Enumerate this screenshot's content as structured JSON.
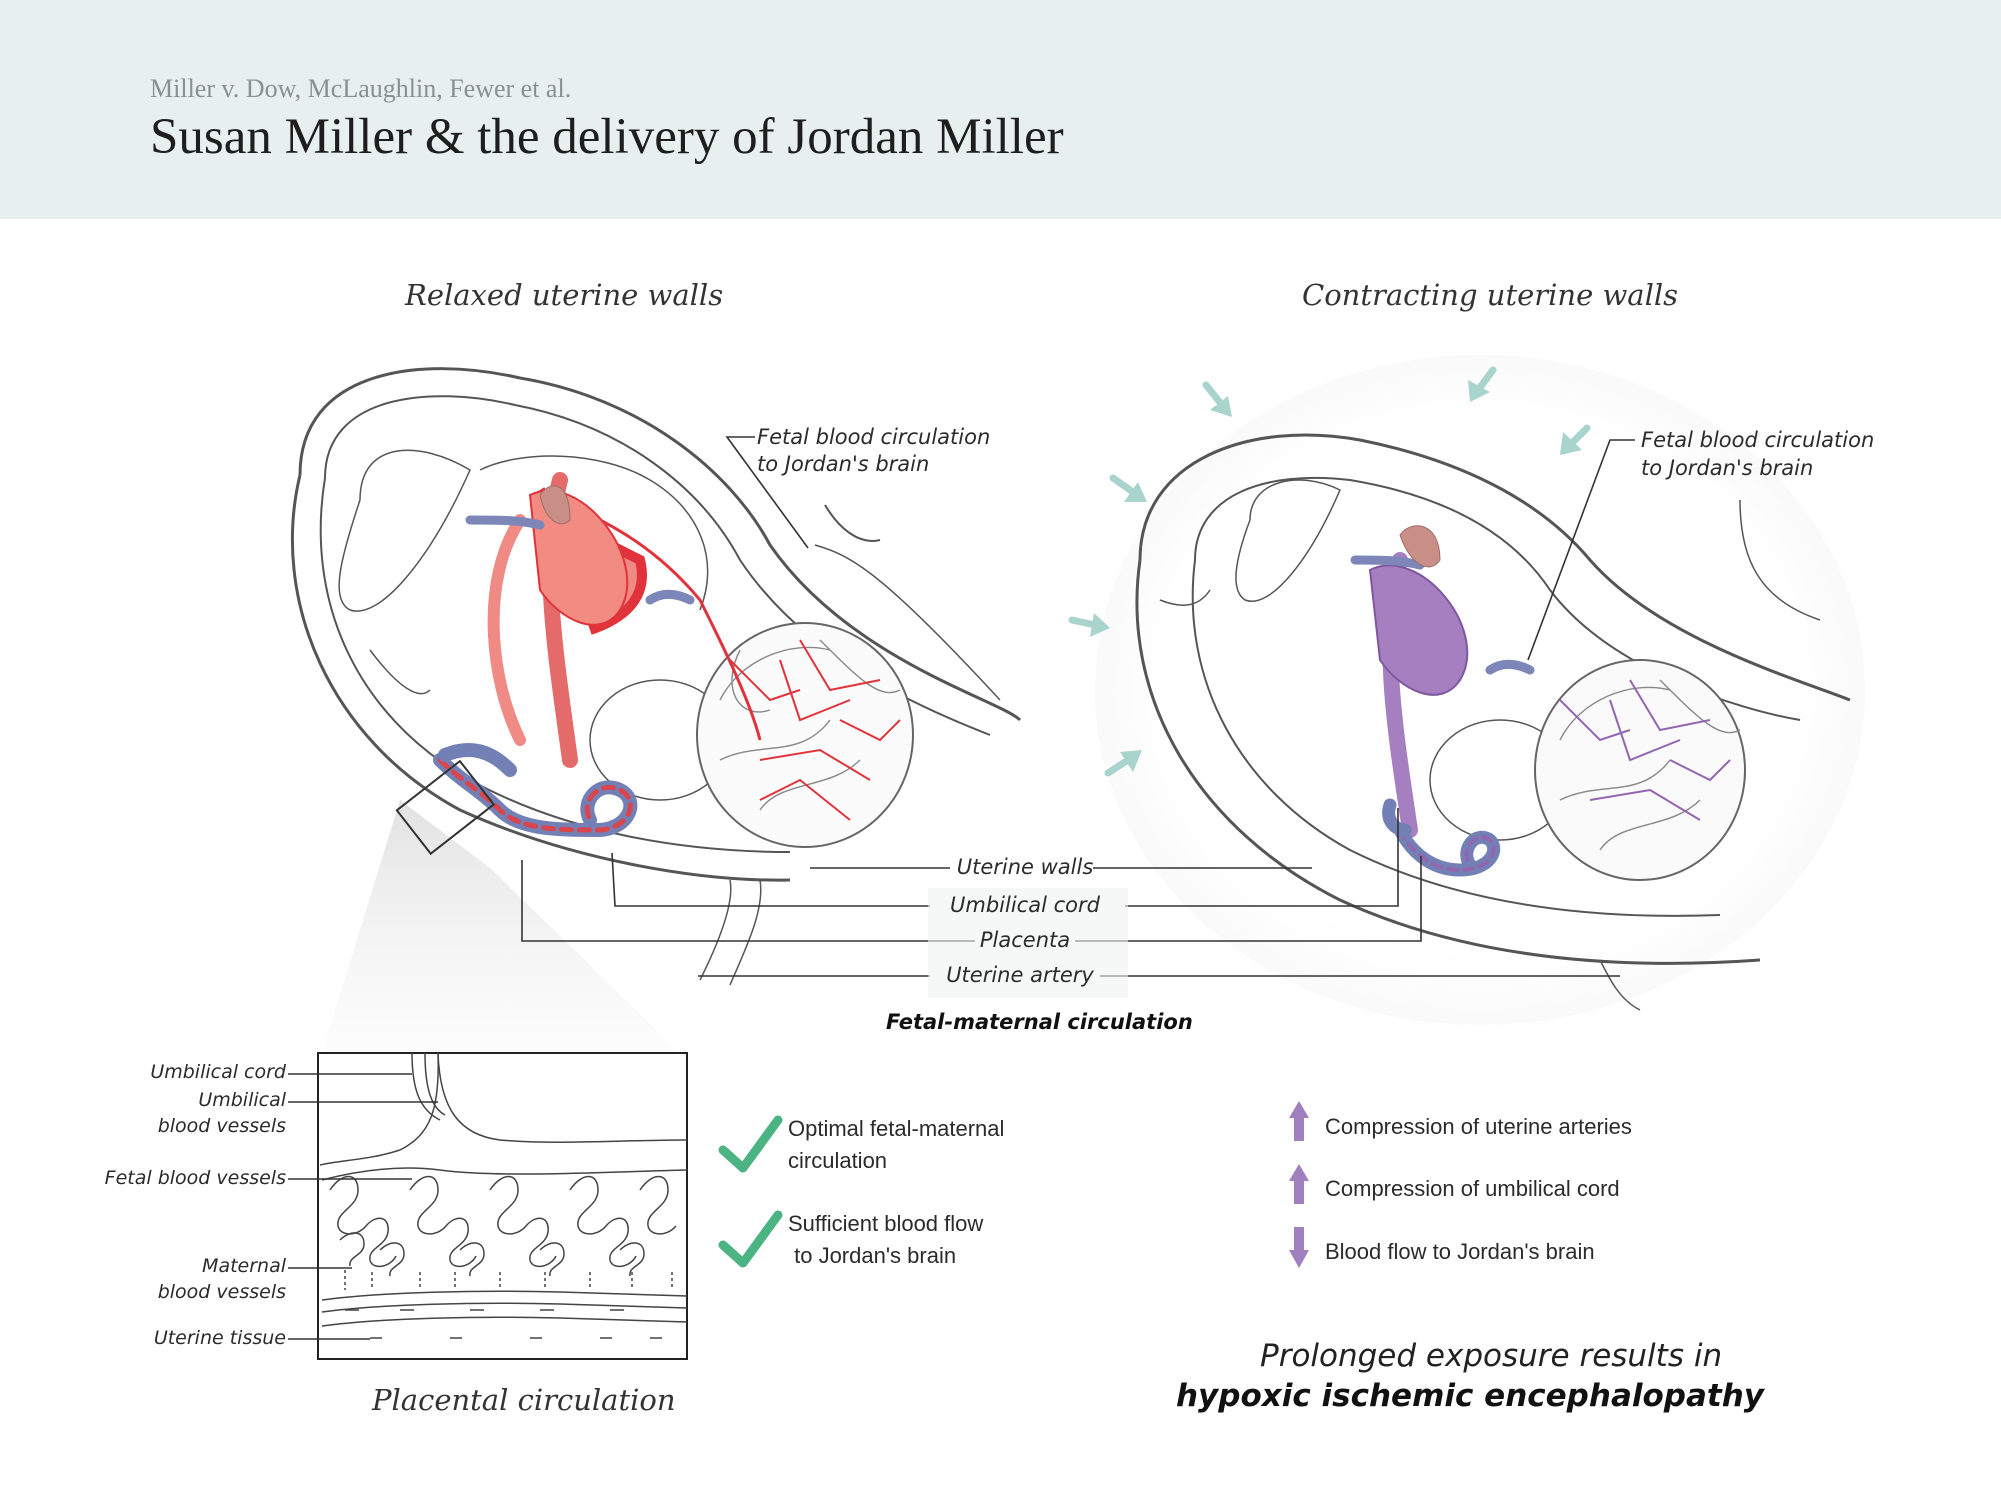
{
  "header": {
    "case": "Miller v. Dow, McLaughlin, Fewer et al.",
    "title": "Susan Miller & the delivery of Jordan Miller"
  },
  "panels": {
    "left_title": "Relaxed uterine walls",
    "right_title": "Contracting uterine walls",
    "left_callout": [
      "Fetal blood circulation",
      "to Jordan's brain"
    ],
    "right_callout": [
      "Fetal blood circulation",
      "to Jordan's brain"
    ]
  },
  "center_labels": {
    "uterine_walls": "Uterine walls",
    "umbilical_cord": "Umbilical cord",
    "placenta": "Placenta",
    "uterine_artery": "Uterine artery",
    "caption": "Fetal-maternal circulation"
  },
  "placental": {
    "labels": {
      "umbilical_cord": "Umbilical cord",
      "umbilical_vessels": [
        "Umbilical",
        "blood vessels"
      ],
      "fetal_vessels": "Fetal blood vessels",
      "maternal_vessels": [
        "Maternal",
        "blood vessels"
      ],
      "uterine_tissue": "Uterine tissue"
    },
    "caption": "Placental circulation"
  },
  "benefits": [
    {
      "icon": "check-icon",
      "lines": [
        "Optimal fetal-maternal",
        "circulation"
      ]
    },
    {
      "icon": "check-icon",
      "lines": [
        "Sufficient blood flow",
        " to Jordan's brain"
      ]
    }
  ],
  "effects": [
    {
      "icon": "arrow-up-icon",
      "text": "Compression of uterine arteries"
    },
    {
      "icon": "arrow-up-icon",
      "text": "Compression of umbilical cord"
    },
    {
      "icon": "arrow-down-icon",
      "text": "Blood flow to Jordan's brain"
    }
  ],
  "conclusion": {
    "line1": "Prolonged exposure results in",
    "line2": "hypoxic ischemic encephalopathy"
  },
  "colors": {
    "header_bg": "#e7f0ee",
    "artery_red": "#e0333b",
    "hypoxic_purple": "#9366b0",
    "check_green": "#4cb383",
    "pressure_arrow": "#a9d3cd",
    "vein_blue": "#6f7fb1"
  }
}
